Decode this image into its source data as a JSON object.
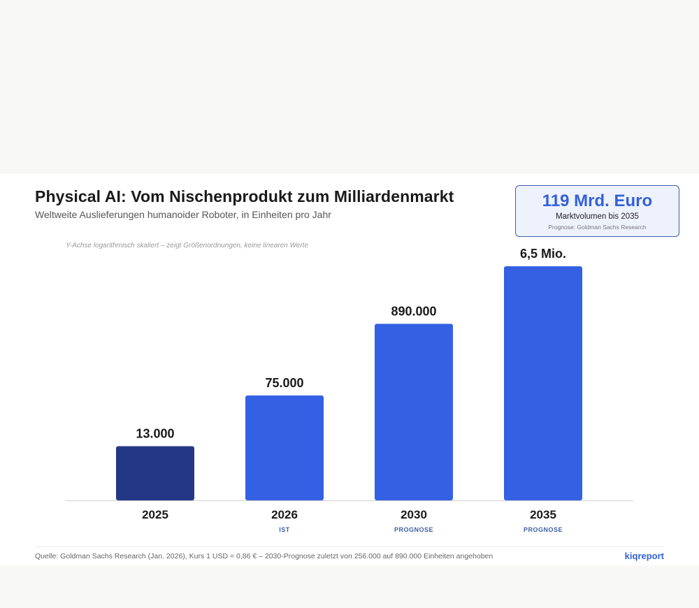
{
  "header": {
    "title": "Physical AI: Vom Nischenprodukt zum Milliardenmarkt",
    "subtitle": "Weltweite Auslieferungen humanoider Roboter, in Einheiten pro Jahr",
    "note": "Y-Achse logarithmisch skaliert – zeigt Größenordnungen, keine linearen Werte"
  },
  "kpi": {
    "value": "119 Mrd. Euro",
    "label": "Marktvolumen bis 2035",
    "source": "Prognose: Goldman Sachs Research"
  },
  "footer": {
    "source": "Quelle: Goldman Sachs Research (Jan. 2026), Kurs 1 USD = 0,86 € – 2030-Prognose zuletzt von 256.000 auf 890.000 Einheiten angehoben",
    "brand": "kiqreport"
  },
  "colors": {
    "bar_actual": "#233784",
    "bar_forecast": "#3461e3",
    "status": "#3d5fa8",
    "axis": "#d0d0d0"
  },
  "chart_data": {
    "type": "bar",
    "yscale": "log",
    "categories": [
      "2025",
      "2026",
      "2030",
      "2035"
    ],
    "values": [
      13000,
      75000,
      890000,
      6500000
    ],
    "data_labels": [
      "13.000",
      "75.000",
      "890.000",
      "6,5 Mio."
    ],
    "status_labels": [
      "",
      "IST",
      "PROGNOSE",
      "PROGNOSE"
    ],
    "ylim": [
      2000,
      6500000
    ],
    "grid": false,
    "legend": "none"
  }
}
